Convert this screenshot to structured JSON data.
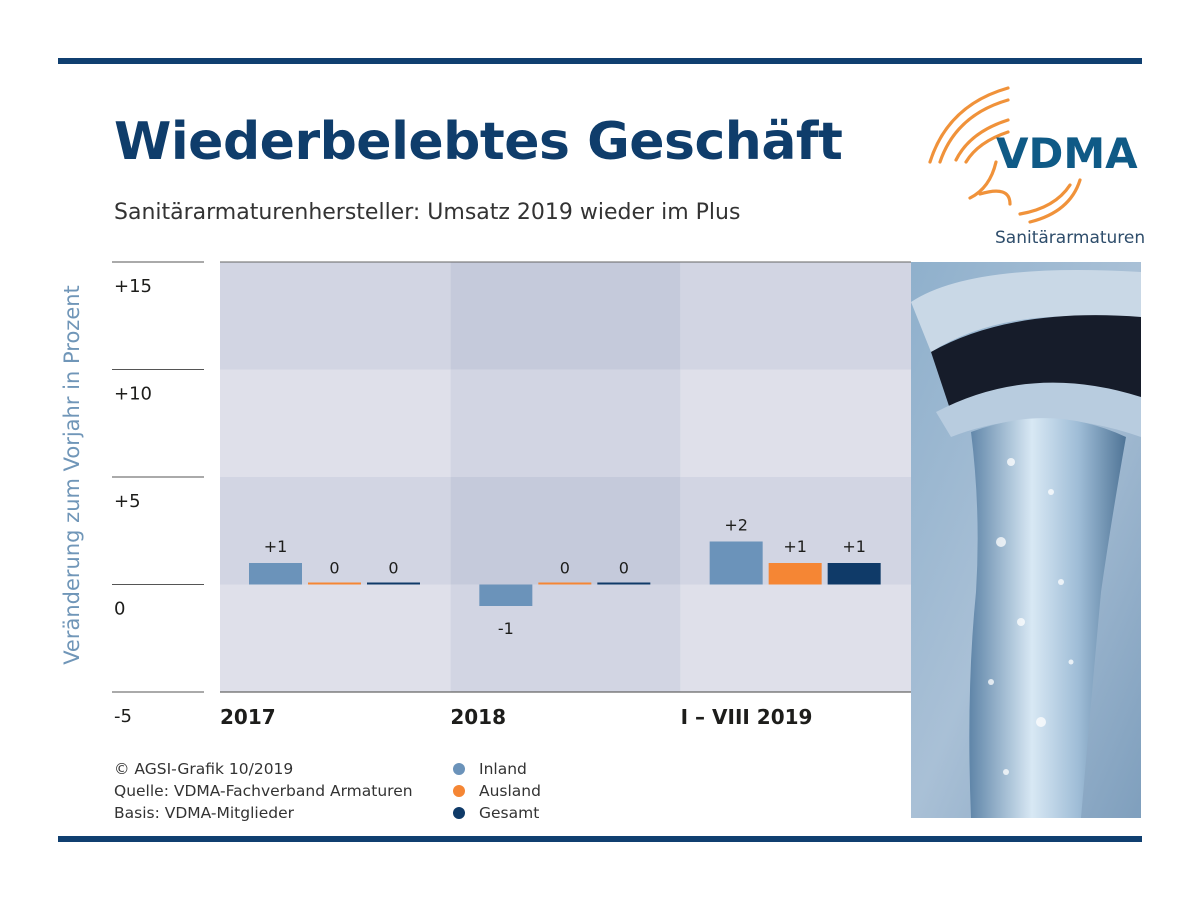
{
  "header": {
    "title": "Wiederbelebtes Geschäft",
    "subtitle": "Sanitärarmaturenhersteller: Umsatz 2019 wieder im Plus"
  },
  "logo": {
    "text": "VDMA",
    "subtext": "Sanitärarmaturen",
    "icon": "vdma-arcs-logo"
  },
  "colors": {
    "brand_dark": "#103f70",
    "inland": "#6b93ba",
    "ausland": "#f58634",
    "gesamt": "#0f3a68",
    "band_light": "#dfe0ea",
    "band_dark": "#d2d5e3",
    "band_mid_light": "#d2d5e3",
    "band_mid_dark": "#c5cadb"
  },
  "footer": {
    "lines": [
      "© AGSI-Grafik 10/2019",
      "Quelle: VDMA-Fachverband Armaturen",
      "Basis: VDMA-Mitglieder"
    ]
  },
  "photo": {
    "description": "water-tap-photo"
  },
  "chart_data": {
    "type": "bar",
    "title": "Wiederbelebtes Geschäft",
    "subtitle": "Sanitärarmaturenhersteller: Umsatz 2019 wieder im Plus",
    "xlabel": "",
    "ylabel": "Veränderung zum Vorjahr in Prozent",
    "ylim": [
      -5,
      15
    ],
    "yticks": [
      15,
      10,
      5,
      0,
      -5
    ],
    "ytick_labels": [
      "+15",
      "+10",
      "+5",
      "0",
      "-5"
    ],
    "categories": [
      "2017",
      "2018",
      "I – VIII 2019"
    ],
    "series": [
      {
        "name": "Inland",
        "color": "#6b93ba",
        "values": [
          1,
          -1,
          2
        ],
        "labels": [
          "+1",
          "-1",
          "+2"
        ]
      },
      {
        "name": "Ausland",
        "color": "#f58634",
        "values": [
          0,
          0,
          1
        ],
        "labels": [
          "0",
          "0",
          "+1"
        ]
      },
      {
        "name": "Gesamt",
        "color": "#0f3a68",
        "values": [
          0,
          0,
          1
        ],
        "labels": [
          "0",
          "0",
          "+1"
        ]
      }
    ],
    "legend": "bottom-center",
    "grid": true
  }
}
